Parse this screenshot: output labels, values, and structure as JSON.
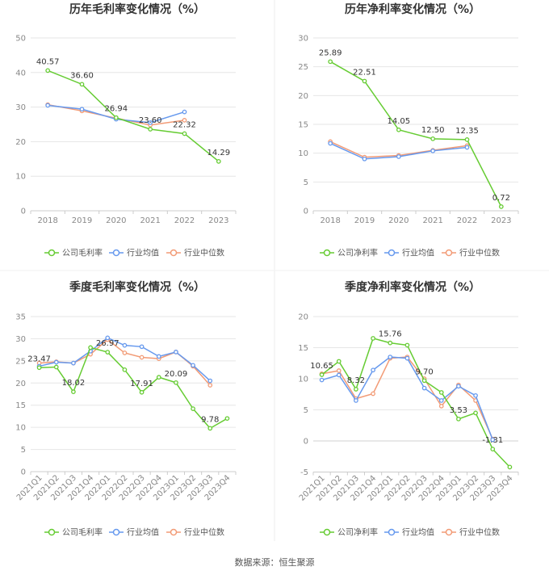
{
  "source": "数据来源：恒生聚源",
  "colors": {
    "company": "#66cc33",
    "industry_avg": "#6699ee",
    "industry_median": "#f29b76"
  },
  "legend": {
    "gross": [
      "公司毛利率",
      "行业均值",
      "行业中位数"
    ],
    "net": [
      "公司净利率",
      "行业均值",
      "行业中位数"
    ]
  },
  "chart_data": [
    {
      "type": "line",
      "title": "历年毛利率变化情况（%）",
      "categories": [
        "2018",
        "2019",
        "2020",
        "2021",
        "2022",
        "2023"
      ],
      "ylim": [
        0,
        50
      ],
      "yticks": [
        0,
        10,
        20,
        30,
        40,
        50
      ],
      "series": [
        {
          "name": "公司毛利率",
          "values": [
            40.57,
            36.6,
            26.94,
            23.6,
            22.32,
            14.29
          ]
        },
        {
          "name": "行业均值",
          "values": [
            30.5,
            29.4,
            26.5,
            25.5,
            28.6,
            null
          ]
        },
        {
          "name": "行业中位数",
          "values": [
            30.7,
            28.9,
            26.8,
            24.8,
            26.2,
            null
          ]
        }
      ],
      "data_labels": [
        "40.57",
        "36.60",
        "26.94",
        "23.60",
        "22.32",
        "14.29"
      ],
      "grid": true,
      "legend_position": "bottom"
    },
    {
      "type": "line",
      "title": "历年净利率变化情况（%）",
      "categories": [
        "2018",
        "2019",
        "2020",
        "2021",
        "2022",
        "2023"
      ],
      "ylim": [
        0,
        30
      ],
      "yticks": [
        0,
        5,
        10,
        15,
        20,
        25,
        30
      ],
      "series": [
        {
          "name": "公司净利率",
          "values": [
            25.89,
            22.51,
            14.05,
            12.5,
            12.35,
            0.72
          ]
        },
        {
          "name": "行业均值",
          "values": [
            11.7,
            9.0,
            9.4,
            10.4,
            11.0,
            null
          ]
        },
        {
          "name": "行业中位数",
          "values": [
            12.0,
            9.3,
            9.6,
            10.5,
            11.3,
            null
          ]
        }
      ],
      "data_labels": [
        "25.89",
        "22.51",
        "14.05",
        "12.50",
        "12.35",
        "0.72"
      ],
      "grid": true,
      "legend_position": "bottom"
    },
    {
      "type": "line",
      "title": "季度毛利率变化情况（%）",
      "categories": [
        "2021Q1",
        "2021Q2",
        "2021Q3",
        "2021Q4",
        "2022Q1",
        "2022Q2",
        "2022Q3",
        "2022Q4",
        "2023Q1",
        "2023Q2",
        "2023Q3",
        "2023Q4"
      ],
      "ylim": [
        0,
        35
      ],
      "yticks": [
        0,
        5,
        10,
        15,
        20,
        25,
        30,
        35
      ],
      "series": [
        {
          "name": "公司毛利率",
          "values": [
            23.47,
            23.6,
            18.02,
            28.0,
            26.97,
            23.0,
            17.91,
            21.3,
            20.09,
            14.2,
            9.78,
            12.0
          ]
        },
        {
          "name": "行业均值",
          "values": [
            23.8,
            24.7,
            24.5,
            27.2,
            30.2,
            28.5,
            28.2,
            26.0,
            27.0,
            24.0,
            20.5,
            null
          ]
        },
        {
          "name": "行业中位数",
          "values": [
            24.5,
            24.8,
            24.5,
            26.5,
            29.8,
            26.8,
            25.8,
            25.5,
            27.0,
            23.8,
            19.5,
            null
          ]
        }
      ],
      "data_labels": [
        "23.47",
        "",
        "18.02",
        "",
        "26.97",
        "",
        "17.91",
        "",
        "20.09",
        "",
        "9.78",
        ""
      ],
      "grid": true,
      "legend_position": "bottom"
    },
    {
      "type": "line",
      "title": "季度净利率变化情况（%）",
      "categories": [
        "2021Q1",
        "2021Q2",
        "2021Q3",
        "2021Q4",
        "2022Q1",
        "2022Q2",
        "2022Q3",
        "2022Q4",
        "2023Q1",
        "2023Q2",
        "2023Q3",
        "2023Q4"
      ],
      "ylim": [
        -5,
        20
      ],
      "yticks": [
        -5,
        0,
        5,
        10,
        15,
        20
      ],
      "series": [
        {
          "name": "公司净利率",
          "values": [
            10.65,
            12.8,
            8.32,
            16.5,
            15.76,
            15.4,
            9.7,
            7.8,
            3.53,
            4.5,
            -1.31,
            -4.2
          ]
        },
        {
          "name": "行业均值",
          "values": [
            9.8,
            10.6,
            6.5,
            11.4,
            13.5,
            13.3,
            8.5,
            6.5,
            8.8,
            7.3,
            0.2,
            null
          ]
        },
        {
          "name": "行业中位数",
          "values": [
            10.8,
            11.3,
            6.8,
            7.6,
            13.3,
            13.5,
            10.0,
            5.6,
            9.0,
            6.5,
            0.3,
            null
          ]
        }
      ],
      "data_labels": [
        "10.65",
        "",
        "8.32",
        "",
        "15.76",
        "",
        "9.70",
        "",
        "3.53",
        "",
        "-1.31",
        ""
      ],
      "grid": true,
      "legend_position": "bottom"
    }
  ]
}
